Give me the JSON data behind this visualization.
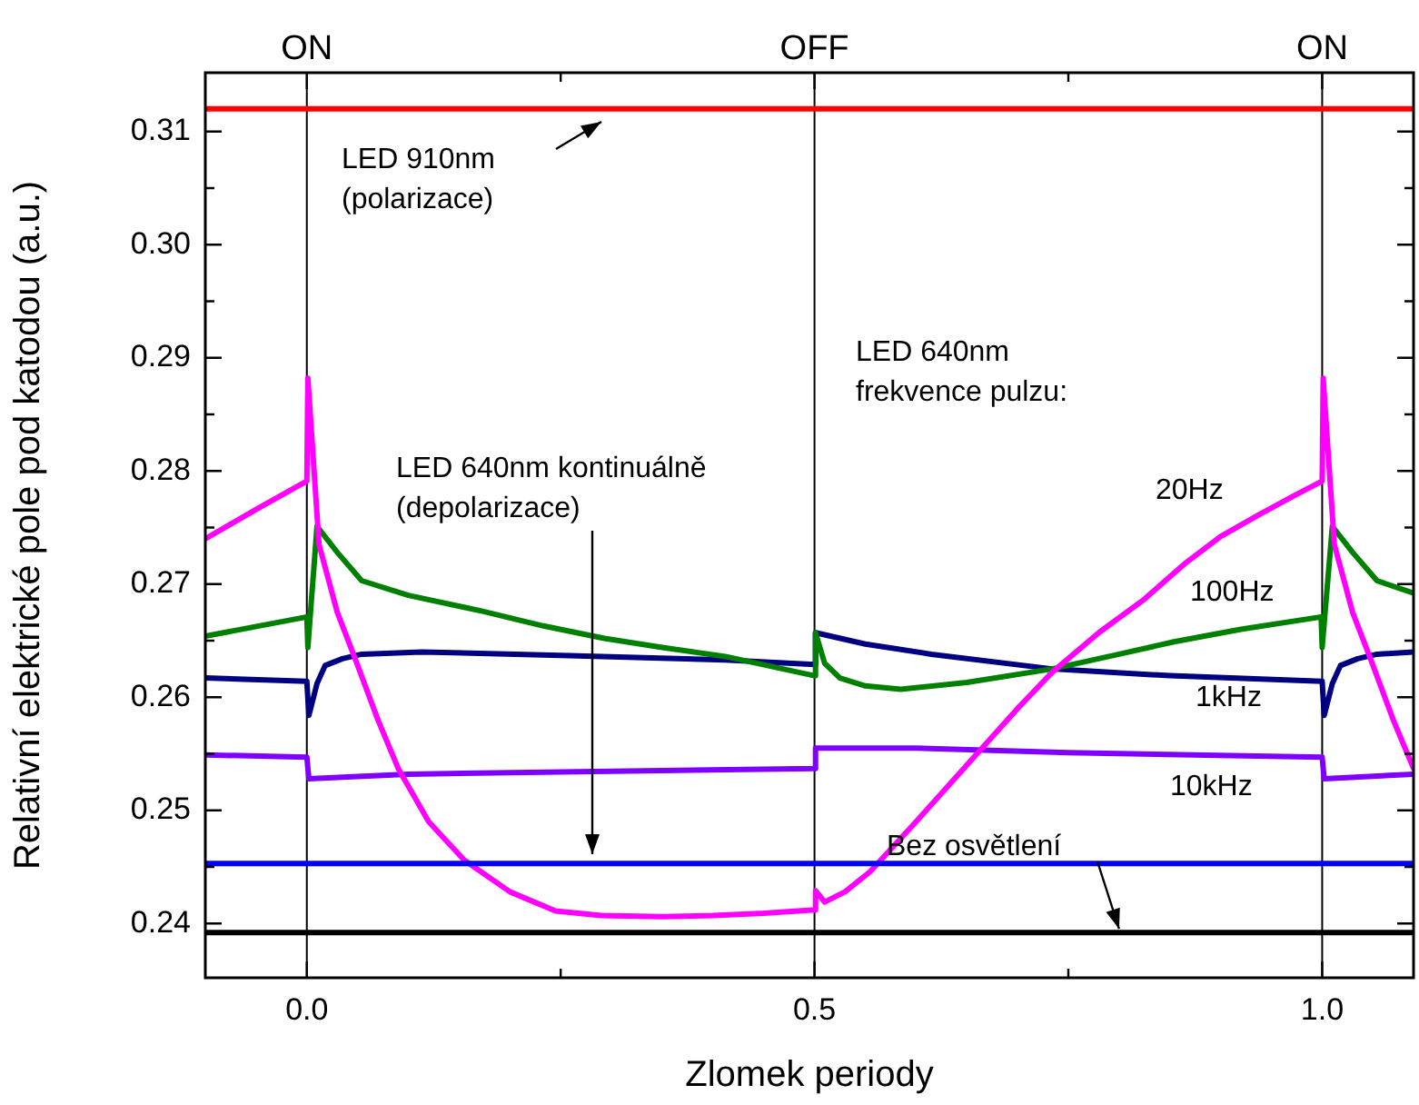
{
  "chart_data": {
    "type": "line",
    "xlabel": "Zlomek periody",
    "ylabel": "Relativní elektrické pole pod katodou (a.u.)",
    "xlim": [
      -0.1,
      1.09
    ],
    "ylim": [
      0.2352,
      0.3152
    ],
    "xticks": [
      {
        "value": 0,
        "label": "0.0"
      },
      {
        "value": 0.25,
        "label": null
      },
      0.5,
      {
        "value": 0.75,
        "label": null
      },
      {
        "value": 1,
        "label": "1.0"
      }
    ],
    "yticks": [
      0.24,
      {
        "value": 0.245,
        "label": null
      },
      0.25,
      {
        "value": 0.255,
        "label": null
      },
      0.26,
      {
        "value": 0.265,
        "label": null
      },
      0.27,
      {
        "value": 0.275,
        "label": null
      },
      0.28,
      {
        "value": 0.285,
        "label": null
      },
      0.29,
      {
        "value": 0.295,
        "label": null
      },
      {
        "value": 0.3,
        "label": "0.30"
      },
      {
        "value": 0.305,
        "label": null
      },
      0.31
    ],
    "grid": false,
    "legend": false,
    "ref_lines": [
      {
        "axis": "x",
        "value": 0,
        "label": "ON",
        "color": "#000000"
      },
      {
        "axis": "x",
        "value": 0.5,
        "label": "OFF",
        "color": "#000000"
      },
      {
        "axis": "x",
        "value": 1,
        "label": "ON",
        "color": "#000000"
      }
    ],
    "annotations": [
      "LED 640nm\nfrekvence pulzu:",
      {
        "text": "Bez osvětlení",
        "x": 0.8,
        "y": 0.2392
      }
    ],
    "series": [
      {
        "name": "LED 910nm\n(polarizace)",
        "color": "#ff0000",
        "x": [
          -0.1,
          0.5,
          1.09
        ],
        "values": [
          0.312,
          0.312,
          0.312
        ]
      },
      {
        "name": "LED 640nm kontinuálně\n(depolarizace)",
        "color": "#0000ff",
        "x": [
          -0.1,
          0.5,
          1.09
        ],
        "values": [
          0.2453,
          0.2453,
          0.2453
        ]
      },
      {
        "color": "#000000",
        "x": [
          -0.1,
          0.5,
          1.09
        ],
        "values": [
          0.2392,
          0.2392,
          0.2392
        ]
      },
      {
        "name": "20Hz",
        "color": "#ff00ff",
        "x": [
          -0.1,
          -0.05,
          0,
          0.001,
          0.012,
          0.03,
          0.048,
          0.07,
          0.09,
          0.12,
          0.155,
          0.2,
          0.245,
          0.29,
          0.35,
          0.4,
          0.45,
          0.5,
          0.501,
          0.51,
          0.53,
          0.555,
          0.6,
          0.663,
          0.7,
          0.734,
          0.78,
          0.824,
          0.866,
          0.9,
          0.937,
          0.97,
          1.0,
          1.001,
          1.012,
          1.03,
          1.048,
          1.07,
          1.09
        ],
        "values": [
          0.274,
          0.2766,
          0.2791,
          0.2882,
          0.2735,
          0.2675,
          0.2633,
          0.258,
          0.2537,
          0.249,
          0.2456,
          0.2428,
          0.2411,
          0.2407,
          0.2406,
          0.2407,
          0.2409,
          0.2412,
          0.2429,
          0.2419,
          0.2428,
          0.2446,
          0.249,
          0.2553,
          0.259,
          0.2622,
          0.2657,
          0.2686,
          0.2719,
          0.2742,
          0.2761,
          0.2777,
          0.2791,
          0.2882,
          0.2735,
          0.2675,
          0.2633,
          0.258,
          0.2537
        ]
      },
      {
        "name": "100Hz",
        "color": "#008000",
        "x": [
          -0.1,
          0,
          0.001,
          0.01,
          0.03,
          0.054,
          0.1,
          0.173,
          0.233,
          0.293,
          0.35,
          0.412,
          0.5,
          0.501,
          0.51,
          0.525,
          0.55,
          0.585,
          0.65,
          0.734,
          0.8,
          0.854,
          0.92,
          0.999,
          1.0,
          1.01,
          1.03,
          1.054,
          1.09
        ],
        "values": [
          0.2654,
          0.2671,
          0.2644,
          0.2751,
          0.2728,
          0.2703,
          0.269,
          0.2676,
          0.2663,
          0.2652,
          0.2644,
          0.2636,
          0.2619,
          0.2657,
          0.263,
          0.2617,
          0.261,
          0.2607,
          0.2613,
          0.2625,
          0.2638,
          0.2649,
          0.266,
          0.2671,
          0.2644,
          0.2751,
          0.2728,
          0.2703,
          0.2692
        ]
      },
      {
        "name": "1kHz",
        "color": "#000080",
        "x": [
          -0.1,
          0,
          0.002,
          0.01,
          0.018,
          0.035,
          0.054,
          0.113,
          0.25,
          0.412,
          0.5,
          0.501,
          0.55,
          0.615,
          0.734,
          0.85,
          1.0,
          1.002,
          1.01,
          1.018,
          1.035,
          1.054,
          1.09
        ],
        "values": [
          0.2617,
          0.2614,
          0.2584,
          0.2612,
          0.2628,
          0.2634,
          0.2638,
          0.264,
          0.2637,
          0.2633,
          0.2629,
          0.2657,
          0.2647,
          0.2638,
          0.2625,
          0.2619,
          0.2614,
          0.2584,
          0.2612,
          0.2628,
          0.2634,
          0.2638,
          0.264
        ]
      },
      {
        "name": "10kHz",
        "color": "#8000ff",
        "x": [
          -0.1,
          0,
          0.002,
          0.05,
          0.1,
          0.25,
          0.5,
          0.501,
          0.6,
          0.75,
          1.0,
          1.002,
          1.09
        ],
        "values": [
          0.2549,
          0.2547,
          0.2528,
          0.253,
          0.2532,
          0.2534,
          0.2537,
          0.2555,
          0.2555,
          0.2551,
          0.2547,
          0.2528,
          0.2532
        ]
      }
    ]
  }
}
